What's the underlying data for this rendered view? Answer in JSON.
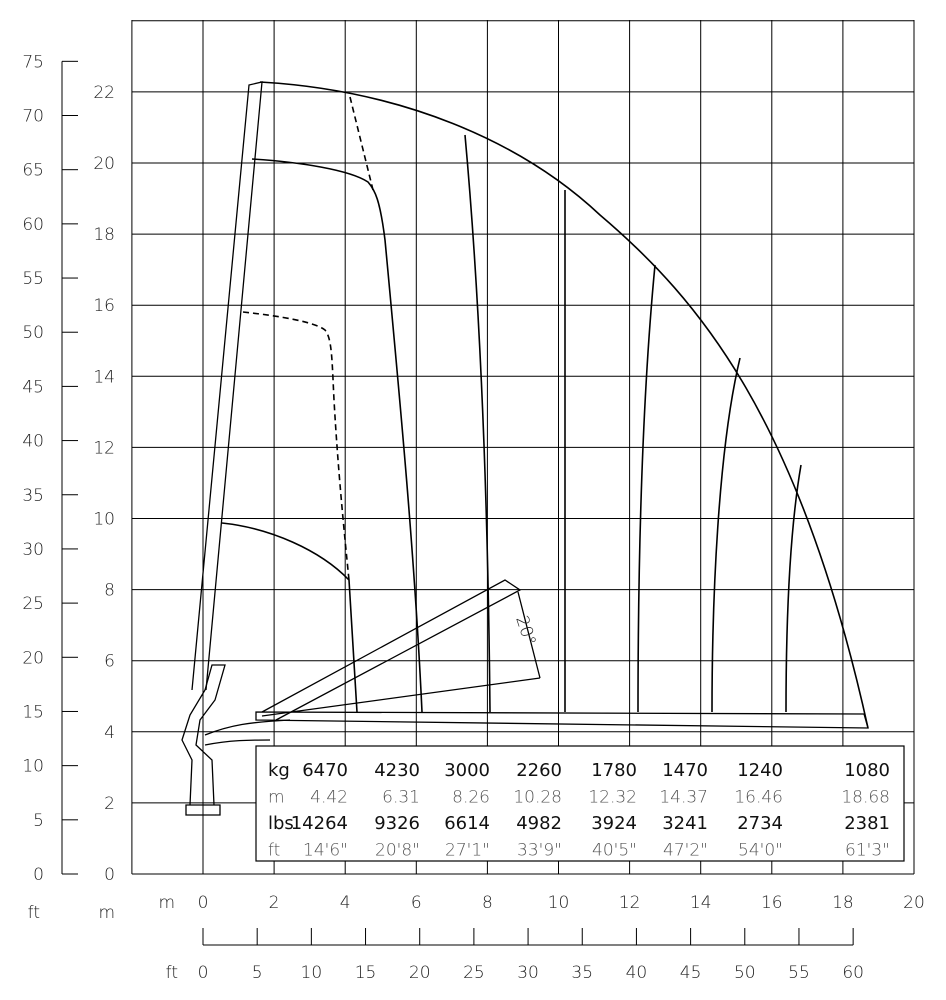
{
  "axes": {
    "ft_unit": "ft",
    "m_unit": "m",
    "left_ft_ticks": [
      "0",
      "5",
      "10",
      "15",
      "20",
      "25",
      "30",
      "35",
      "40",
      "45",
      "50",
      "55",
      "60",
      "65",
      "70",
      "75"
    ],
    "left_m_ticks": [
      "0",
      "2",
      "4",
      "6",
      "8",
      "10",
      "12",
      "14",
      "16",
      "18",
      "20",
      "22"
    ],
    "bottom_m_ticks": [
      "0",
      "2",
      "4",
      "6",
      "8",
      "10",
      "12",
      "14",
      "16",
      "18",
      "20"
    ],
    "bottom_ft_ticks": [
      "0",
      "5",
      "10",
      "15",
      "20",
      "25",
      "30",
      "35",
      "40",
      "45",
      "50",
      "55",
      "60"
    ]
  },
  "angle_label": "20°",
  "table": {
    "rows": [
      {
        "unit": "kg",
        "values": [
          "6470",
          "4230",
          "3000",
          "2260",
          "1780",
          "1470",
          "1240",
          "1080"
        ]
      },
      {
        "unit": "m",
        "values": [
          "4.42",
          "6.31",
          "8.26",
          "10.28",
          "12.32",
          "14.37",
          "16.46",
          "18.68"
        ]
      },
      {
        "unit": "lbs",
        "values": [
          "14264",
          "9326",
          "6614",
          "4982",
          "3924",
          "3241",
          "2734",
          "2381"
        ]
      },
      {
        "unit": "ft",
        "values": [
          "14'6\"",
          "20'8\"",
          "27'1\"",
          "33'9\"",
          "40'5\"",
          "47'2\"",
          "54'0\"",
          "61'3\""
        ]
      }
    ]
  }
}
